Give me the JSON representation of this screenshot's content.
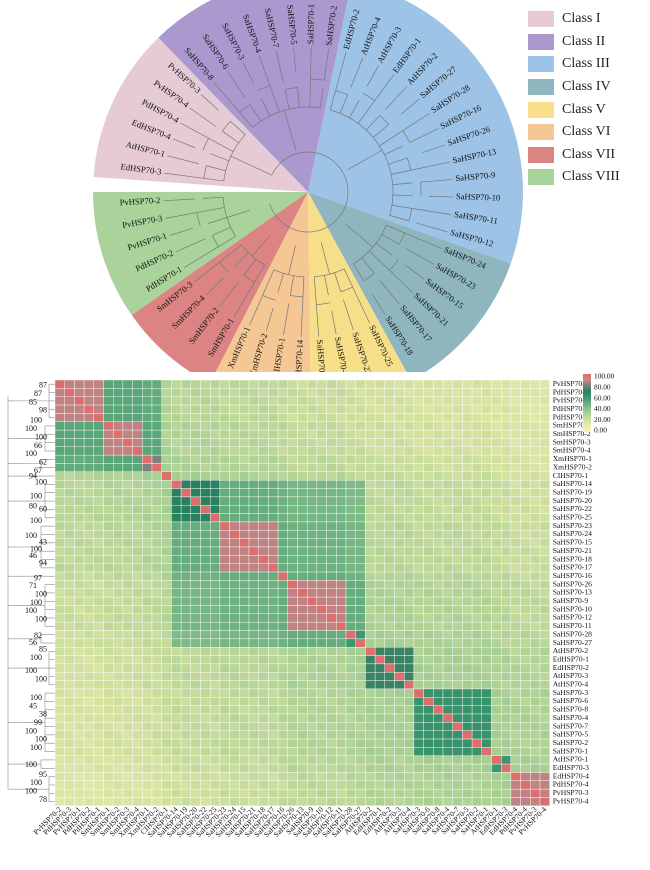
{
  "legend": {
    "items": [
      {
        "label": "Class I",
        "color": "#e6cbd6"
      },
      {
        "label": "Class II",
        "color": "#ab98cf"
      },
      {
        "label": "Class III",
        "color": "#9dc3e6"
      },
      {
        "label": "Class IV",
        "color": "#8fb6bf"
      },
      {
        "label": "Class V",
        "color": "#f7df89"
      },
      {
        "label": "Class VI",
        "color": "#f5c795"
      },
      {
        "label": "Class VII",
        "color": "#dc8484"
      },
      {
        "label": "Class VIII",
        "color": "#a9d39a"
      }
    ]
  },
  "tree": {
    "clades": [
      {
        "class": "Class I",
        "leaves": [
          "EdHSP70-3",
          "AtHSP70-1",
          "EdHSP70-4",
          "PdHSP70-4",
          "PvHSP70-4",
          "PvHSP70-3"
        ]
      },
      {
        "class": "Class II",
        "leaves": [
          "SaHSP70-8",
          "SaHSP70-6",
          "SaHSP70-3",
          "SaHSP70-4",
          "SaHSP70-7",
          "SaHSP70-5",
          "SaHSP70-1",
          "SaHSP70-2"
        ]
      },
      {
        "class": "Class III",
        "leaves": [
          "EdHSP70-2",
          "AtHSP70-4",
          "AtHSP70-3",
          "EdHSP70-1",
          "AtHSP70-2",
          "SaHSP70-27",
          "SaHSP70-28",
          "SaHSP70-16",
          "SaHSP70-26",
          "SaHSP70-13",
          "SaHSP70-9",
          "SaHSP70-10",
          "SaHSP70-11",
          "SaHSP70-12"
        ]
      },
      {
        "class": "Class IV",
        "leaves": [
          "SaHSP70-24",
          "SaHSP70-23",
          "SaHSP70-15",
          "SaHSP70-21",
          "SaHSP70-17",
          "SaHSP70-18"
        ]
      },
      {
        "class": "Class V",
        "leaves": [
          "SaHSP70-25",
          "SaHSP70-22",
          "SaHSP70-20",
          "SaHSP70-19"
        ]
      },
      {
        "class": "Class VI",
        "leaves": [
          "SaHSP70-14",
          "CIHSP70-1",
          "XmHSP70-2",
          "XmHSP70-1"
        ]
      },
      {
        "class": "Class VII",
        "leaves": [
          "SmHSP70-1",
          "SmHSP70-2",
          "SmHSP70-4",
          "SmHSP70-3"
        ]
      },
      {
        "class": "Class VIII",
        "leaves": [
          "PdHSP70-1",
          "PdHSP70-2",
          "PvHSP70-1",
          "PvHSP70-3",
          "PvHSP70-2"
        ]
      }
    ]
  },
  "chart_data": {
    "type": "heatmap",
    "rows": [
      "PvHSP70-2",
      "PdHSP70-3",
      "PvHSP70-1",
      "PdHSP70-2",
      "PdHSP70-1",
      "SmHSP70-1",
      "SmHSP70-2",
      "SmHSP70-3",
      "SmHSP70-4",
      "XmHSP70-1",
      "XmHSP70-2",
      "CIHSP70-1",
      "SaHSP70-14",
      "SaHSP70-19",
      "SaHSP70-20",
      "SaHSP70-22",
      "SaHSP70-25",
      "SaHSP70-23",
      "SaHSP70-24",
      "SaHSP70-15",
      "SaHSP70-21",
      "SaHSP70-18",
      "SaHSP70-17",
      "SaHSP70-16",
      "SaHSP70-26",
      "SaHSP70-13",
      "SaHSP70-9",
      "SaHSP70-10",
      "SaHSP70-12",
      "SaHSP70-11",
      "SaHSP70-28",
      "SaHSP70-27",
      "AtHSP70-2",
      "EdHSP70-1",
      "EdHSP70-2",
      "AtHSP70-3",
      "AtHSP70-4",
      "SaHSP70-3",
      "SaHSP70-6",
      "SaHSP70-8",
      "SaHSP70-4",
      "SaHSP70-7",
      "SaHSP70-5",
      "SaHSP70-2",
      "SaHSP70-1",
      "AtHSP70-1",
      "EdHSP70-3",
      "EdHSP70-4",
      "PdHSP70-4",
      "PvHSP70-3",
      "PvHSP70-4"
    ],
    "groups": [
      {
        "start": 0,
        "end": 4,
        "within": 88,
        "near": 50
      },
      {
        "start": 5,
        "end": 8,
        "within": 88,
        "near": 52
      },
      {
        "start": 9,
        "end": 10,
        "within": 80,
        "near": 45
      },
      {
        "start": 11,
        "end": 11,
        "within": 100,
        "near": 35
      },
      {
        "start": 12,
        "end": 16,
        "within": 70,
        "near": 55
      },
      {
        "start": 17,
        "end": 22,
        "within": 88,
        "near": 55
      },
      {
        "start": 23,
        "end": 23,
        "within": 100,
        "near": 48
      },
      {
        "start": 24,
        "end": 29,
        "within": 88,
        "near": 52
      },
      {
        "start": 30,
        "end": 31,
        "within": 60,
        "near": 38
      },
      {
        "start": 32,
        "end": 36,
        "within": 72,
        "near": 35
      },
      {
        "start": 37,
        "end": 44,
        "within": 62,
        "near": 38
      },
      {
        "start": 45,
        "end": 46,
        "within": 60,
        "near": 30
      },
      {
        "start": 47,
        "end": 50,
        "within": 88,
        "near": 30
      }
    ],
    "superblocks": [
      {
        "start": 12,
        "end": 31,
        "value": 52
      },
      {
        "start": 0,
        "end": 10,
        "value": 55
      }
    ],
    "background": 32,
    "colorbar": {
      "min": 0,
      "max": 100,
      "ticks": [
        "100.00",
        "80.00",
        "60.00",
        "40.00",
        "20.00",
        "0.00"
      ]
    },
    "bootstrap": [
      {
        "label": "87",
        "row": 0.2
      },
      {
        "label": "87",
        "row": 1.2
      },
      {
        "label": "85",
        "row": 2.2
      },
      {
        "label": "98",
        "row": 3.2
      },
      {
        "label": "100",
        "row": 4.4
      },
      {
        "label": "100",
        "row": 5.4
      },
      {
        "label": "100",
        "row": 6.4
      },
      {
        "label": "66",
        "row": 7.4
      },
      {
        "label": "100",
        "row": 8.4
      },
      {
        "label": "62",
        "row": 9.4
      },
      {
        "label": "67",
        "row": 10.4
      },
      {
        "label": "94",
        "row": 11.1
      },
      {
        "label": "100",
        "row": 11.8
      },
      {
        "label": "100",
        "row": 13.5
      },
      {
        "label": "80",
        "row": 14.7
      },
      {
        "label": "60",
        "row": 15.0
      },
      {
        "label": "100",
        "row": 16.4
      },
      {
        "label": "100",
        "row": 18.2
      },
      {
        "label": "43",
        "row": 19.0
      },
      {
        "label": "100",
        "row": 19.8
      },
      {
        "label": "46",
        "row": 20.6
      },
      {
        "label": "94",
        "row": 21.5
      },
      {
        "label": "97",
        "row": 23.3
      },
      {
        "label": "71",
        "row": 24.2
      },
      {
        "label": "100",
        "row": 25.2
      },
      {
        "label": "100",
        "row": 26.2
      },
      {
        "label": "100",
        "row": 27.2
      },
      {
        "label": "100",
        "row": 28.2
      },
      {
        "label": "82",
        "row": 30.2
      },
      {
        "label": "56",
        "row": 31.0
      },
      {
        "label": "85",
        "row": 31.8
      },
      {
        "label": "100",
        "row": 32.8
      },
      {
        "label": "100",
        "row": 34.4
      },
      {
        "label": "100",
        "row": 35.4
      },
      {
        "label": "100",
        "row": 37.6
      },
      {
        "label": "45",
        "row": 38.6
      },
      {
        "label": "38",
        "row": 39.6
      },
      {
        "label": "99",
        "row": 40.6
      },
      {
        "label": "100",
        "row": 41.6
      },
      {
        "label": "100",
        "row": 42.6
      },
      {
        "label": "100",
        "row": 43.6
      },
      {
        "label": "100",
        "row": 45.6
      },
      {
        "label": "95",
        "row": 46.8
      },
      {
        "label": "100",
        "row": 47.8
      },
      {
        "label": "100",
        "row": 48.8
      },
      {
        "label": "78",
        "row": 49.8
      }
    ]
  }
}
